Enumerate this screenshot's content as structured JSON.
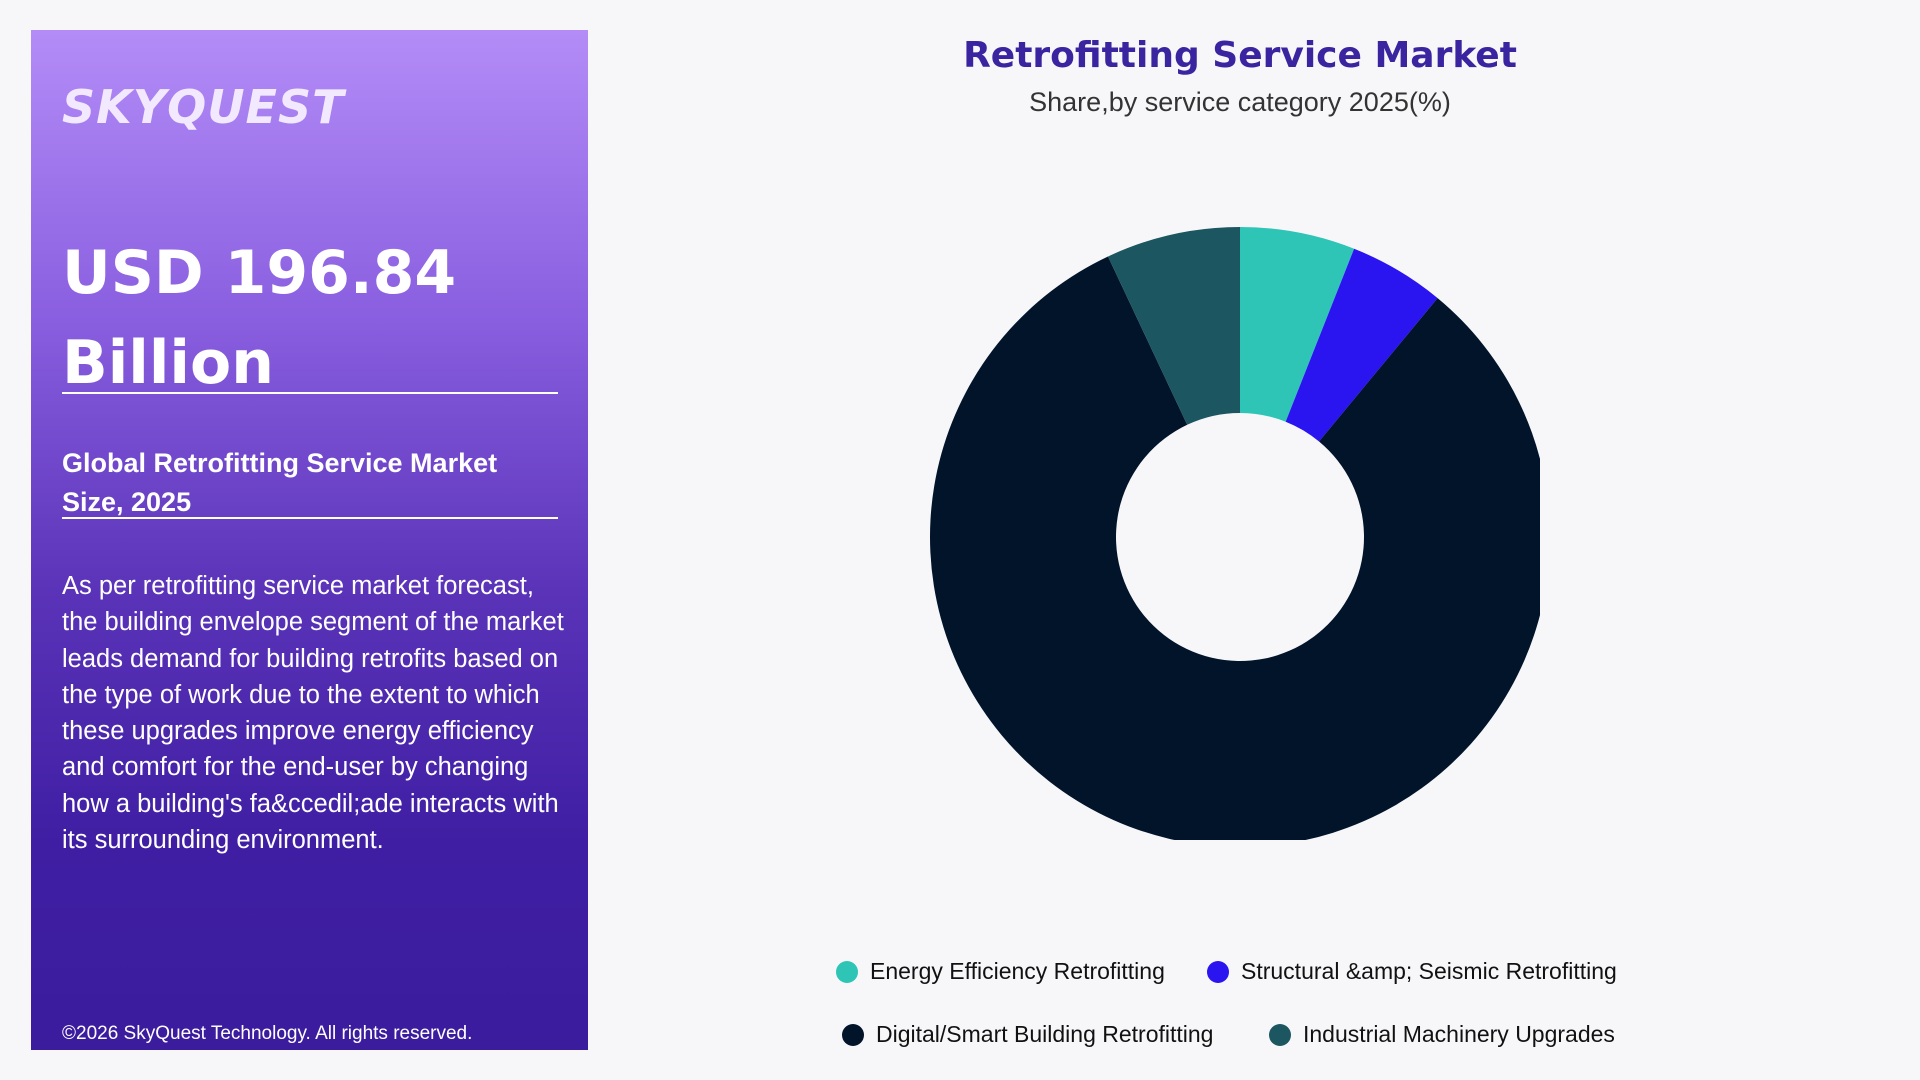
{
  "brand": {
    "logo_text": "SKYQUEST"
  },
  "panel": {
    "value": "USD 196.84 Billion",
    "subtitle": "Global Retrofitting Service Market Size, 2025",
    "description": "As per retrofitting service market forecast, the building envelope segment of the market leads demand for building retrofits based on the type of work due to the extent to which these upgrades improve energy efficiency and comfort for the end-user by changing how a building's fa&ccedil;ade interacts with its surrounding environment.",
    "copyright": "©2026 SkyQuest Technology. All rights reserved."
  },
  "chart_data": {
    "type": "pie",
    "title": "Retrofitting Service Market",
    "subtitle": "Share,by service category 2025(%)",
    "donut": true,
    "categories": [
      "Energy Efficiency Retrofitting",
      "Structural &amp; Seismic Retrofitting",
      "Digital/Smart Building Retrofitting",
      "Industrial Machinery Upgrades"
    ],
    "values": [
      6,
      5,
      82,
      7
    ],
    "colors": [
      "#2ec4b6",
      "#2a14f0",
      "#02142a",
      "#1b5661"
    ],
    "legend_position": "bottom"
  }
}
